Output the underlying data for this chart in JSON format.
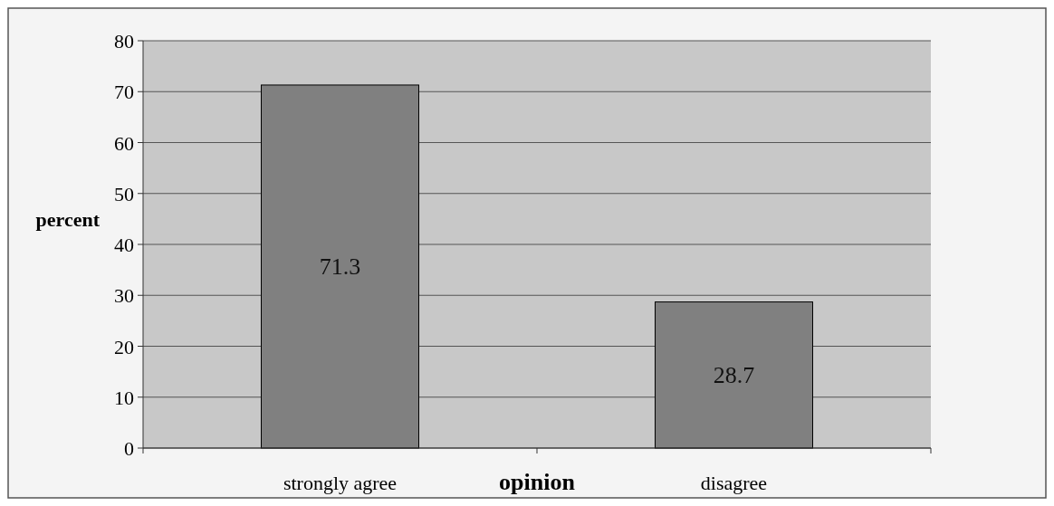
{
  "chart_data": {
    "type": "bar",
    "xlabel": "opinion",
    "ylabel": "percent",
    "categories": [
      "strongly agree",
      "disagree"
    ],
    "values": [
      71.3,
      28.7
    ],
    "color": "#808080",
    "ylim": [
      0,
      80
    ],
    "yticks": [
      0,
      10,
      20,
      30,
      40,
      50,
      60,
      70,
      80
    ],
    "grid": "y",
    "data_labels": true
  }
}
